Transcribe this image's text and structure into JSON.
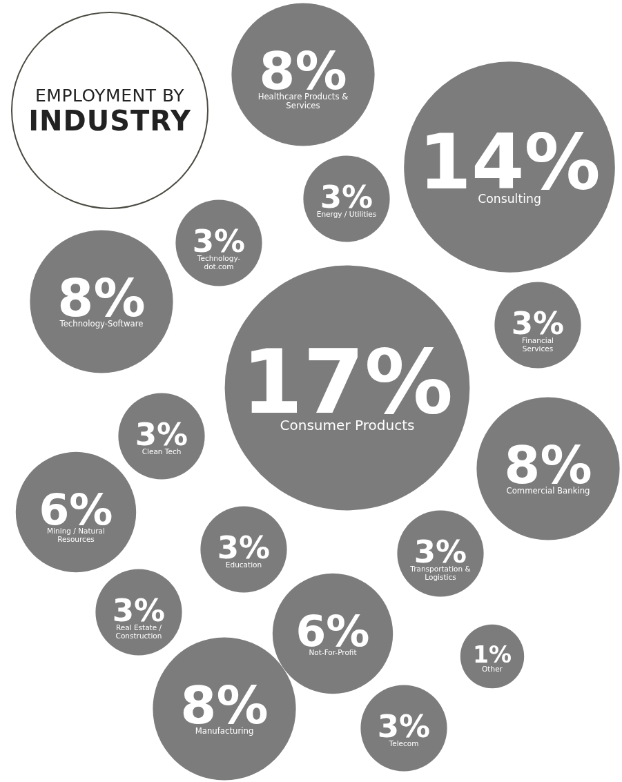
{
  "chart_data": {
    "type": "other",
    "title": "EMPLOYMENT BY INDUSTRY",
    "categories": [
      "Healthcare Products & Services",
      "Consulting",
      "Energy / Utilities",
      "Technology-dot.com",
      "Technology-Software",
      "Financial Services",
      "Consumer Products",
      "Clean Tech",
      "Commercial Banking",
      "Mining / Natural Resources",
      "Education",
      "Transportation & Logistics",
      "Real Estate / Construction",
      "Not-For-Profit",
      "Other",
      "Manufacturing",
      "Telecom"
    ],
    "values": [
      8,
      14,
      3,
      3,
      8,
      3,
      17,
      3,
      8,
      6,
      3,
      3,
      3,
      6,
      1,
      8,
      3
    ],
    "value_labels": [
      "8%",
      "14%",
      "3%",
      "3%",
      "8%",
      "3%",
      "17%",
      "3%",
      "8%",
      "6%",
      "3%",
      "3%",
      "3%",
      "6%",
      "1%",
      "8%",
      "3%"
    ],
    "color": "#7b7c7b"
  }
}
